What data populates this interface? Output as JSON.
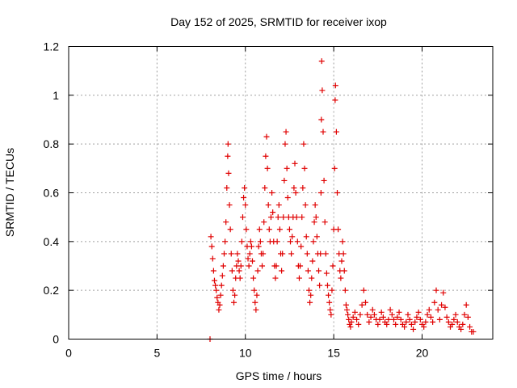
{
  "chart_data": {
    "type": "scatter",
    "title": "Day 152 of 2025, SRMTID for receiver ixop",
    "xlabel": "GPS time / hours",
    "ylabel": "SRMTID / TECUs",
    "xlim": [
      0,
      24
    ],
    "ylim": [
      0,
      1.2
    ],
    "xticks": [
      0,
      5,
      10,
      15,
      20
    ],
    "xtick_labels": [
      "0",
      "5",
      "10",
      "15",
      "20"
    ],
    "yticks": [
      0,
      0.2,
      0.4,
      0.6,
      0.8,
      1.0,
      1.2
    ],
    "ytick_labels": [
      "0",
      "0.2",
      "0.4",
      "0.6",
      "0.8",
      "1",
      "1.2"
    ],
    "grid": true,
    "marker": "+",
    "color": "#e00000",
    "series": [
      {
        "name": "SRMTID",
        "points": [
          [
            8.0,
            0.0
          ],
          [
            8.05,
            0.42
          ],
          [
            8.1,
            0.38
          ],
          [
            8.15,
            0.33
          ],
          [
            8.2,
            0.28
          ],
          [
            8.25,
            0.24
          ],
          [
            8.3,
            0.22
          ],
          [
            8.35,
            0.2
          ],
          [
            8.4,
            0.17
          ],
          [
            8.45,
            0.15
          ],
          [
            8.5,
            0.12
          ],
          [
            8.55,
            0.14
          ],
          [
            8.6,
            0.18
          ],
          [
            8.65,
            0.22
          ],
          [
            8.7,
            0.26
          ],
          [
            8.75,
            0.3
          ],
          [
            8.8,
            0.35
          ],
          [
            8.85,
            0.4
          ],
          [
            8.9,
            0.48
          ],
          [
            8.95,
            0.62
          ],
          [
            9.0,
            0.75
          ],
          [
            9.02,
            0.8
          ],
          [
            9.05,
            0.68
          ],
          [
            9.1,
            0.55
          ],
          [
            9.15,
            0.45
          ],
          [
            9.2,
            0.35
          ],
          [
            9.25,
            0.28
          ],
          [
            9.3,
            0.2
          ],
          [
            9.35,
            0.15
          ],
          [
            9.4,
            0.18
          ],
          [
            9.45,
            0.25
          ],
          [
            9.5,
            0.3
          ],
          [
            9.55,
            0.35
          ],
          [
            9.6,
            0.32
          ],
          [
            9.65,
            0.28
          ],
          [
            9.7,
            0.25
          ],
          [
            9.75,
            0.3
          ],
          [
            9.8,
            0.4
          ],
          [
            9.85,
            0.5
          ],
          [
            9.9,
            0.58
          ],
          [
            9.95,
            0.62
          ],
          [
            10.0,
            0.55
          ],
          [
            10.05,
            0.45
          ],
          [
            10.1,
            0.38
          ],
          [
            10.15,
            0.33
          ],
          [
            10.2,
            0.3
          ],
          [
            10.25,
            0.35
          ],
          [
            10.3,
            0.4
          ],
          [
            10.35,
            0.38
          ],
          [
            10.4,
            0.32
          ],
          [
            10.45,
            0.25
          ],
          [
            10.5,
            0.2
          ],
          [
            10.55,
            0.15
          ],
          [
            10.6,
            0.12
          ],
          [
            10.65,
            0.18
          ],
          [
            10.7,
            0.28
          ],
          [
            10.75,
            0.38
          ],
          [
            10.8,
            0.45
          ],
          [
            10.85,
            0.4
          ],
          [
            10.9,
            0.35
          ],
          [
            10.95,
            0.3
          ],
          [
            11.0,
            0.35
          ],
          [
            11.05,
            0.48
          ],
          [
            11.1,
            0.62
          ],
          [
            11.15,
            0.75
          ],
          [
            11.2,
            0.83
          ],
          [
            11.25,
            0.7
          ],
          [
            11.3,
            0.55
          ],
          [
            11.35,
            0.45
          ],
          [
            11.4,
            0.4
          ],
          [
            11.45,
            0.5
          ],
          [
            11.5,
            0.6
          ],
          [
            11.55,
            0.52
          ],
          [
            11.6,
            0.4
          ],
          [
            11.65,
            0.3
          ],
          [
            11.7,
            0.25
          ],
          [
            11.75,
            0.3
          ],
          [
            11.8,
            0.4
          ],
          [
            11.85,
            0.5
          ],
          [
            11.9,
            0.55
          ],
          [
            11.95,
            0.45
          ],
          [
            12.0,
            0.35
          ],
          [
            12.05,
            0.28
          ],
          [
            12.1,
            0.35
          ],
          [
            12.15,
            0.5
          ],
          [
            12.2,
            0.65
          ],
          [
            12.25,
            0.8
          ],
          [
            12.3,
            0.85
          ],
          [
            12.35,
            0.7
          ],
          [
            12.4,
            0.58
          ],
          [
            12.45,
            0.5
          ],
          [
            12.5,
            0.45
          ],
          [
            12.55,
            0.4
          ],
          [
            12.6,
            0.35
          ],
          [
            12.65,
            0.42
          ],
          [
            12.7,
            0.5
          ],
          [
            12.75,
            0.62
          ],
          [
            12.8,
            0.72
          ],
          [
            12.85,
            0.6
          ],
          [
            12.9,
            0.5
          ],
          [
            12.95,
            0.4
          ],
          [
            13.0,
            0.3
          ],
          [
            13.05,
            0.25
          ],
          [
            13.1,
            0.3
          ],
          [
            13.15,
            0.38
          ],
          [
            13.2,
            0.5
          ],
          [
            13.25,
            0.62
          ],
          [
            13.3,
            0.8
          ],
          [
            13.35,
            0.7
          ],
          [
            13.4,
            0.55
          ],
          [
            13.45,
            0.42
          ],
          [
            13.5,
            0.35
          ],
          [
            13.55,
            0.28
          ],
          [
            13.6,
            0.2
          ],
          [
            13.65,
            0.15
          ],
          [
            13.7,
            0.18
          ],
          [
            13.75,
            0.25
          ],
          [
            13.8,
            0.32
          ],
          [
            13.85,
            0.4
          ],
          [
            13.9,
            0.48
          ],
          [
            13.95,
            0.55
          ],
          [
            14.0,
            0.5
          ],
          [
            14.05,
            0.42
          ],
          [
            14.1,
            0.35
          ],
          [
            14.15,
            0.28
          ],
          [
            14.2,
            0.22
          ],
          [
            14.25,
            0.35
          ],
          [
            14.28,
            0.6
          ],
          [
            14.3,
            0.9
          ],
          [
            14.32,
            1.14
          ],
          [
            14.35,
            1.02
          ],
          [
            14.4,
            0.85
          ],
          [
            14.45,
            0.65
          ],
          [
            14.5,
            0.48
          ],
          [
            14.55,
            0.35
          ],
          [
            14.6,
            0.27
          ],
          [
            14.65,
            0.22
          ],
          [
            14.7,
            0.18
          ],
          [
            14.75,
            0.15
          ],
          [
            14.8,
            0.12
          ],
          [
            14.85,
            0.1
          ],
          [
            14.9,
            0.2
          ],
          [
            14.95,
            0.3
          ],
          [
            15.0,
            0.45
          ],
          [
            15.05,
            0.7
          ],
          [
            15.08,
            0.98
          ],
          [
            15.1,
            1.04
          ],
          [
            15.15,
            0.85
          ],
          [
            15.2,
            0.6
          ],
          [
            15.25,
            0.45
          ],
          [
            15.3,
            0.35
          ],
          [
            15.35,
            0.28
          ],
          [
            15.4,
            0.25
          ],
          [
            15.45,
            0.32
          ],
          [
            15.5,
            0.4
          ],
          [
            15.55,
            0.35
          ],
          [
            15.6,
            0.28
          ],
          [
            15.65,
            0.2
          ],
          [
            15.7,
            0.14
          ],
          [
            15.75,
            0.12
          ],
          [
            15.8,
            0.1
          ],
          [
            15.85,
            0.08
          ],
          [
            15.9,
            0.06
          ],
          [
            15.95,
            0.05
          ],
          [
            16.0,
            0.07
          ],
          [
            16.1,
            0.09
          ],
          [
            16.2,
            0.11
          ],
          [
            16.3,
            0.08
          ],
          [
            16.4,
            0.06
          ],
          [
            16.5,
            0.1
          ],
          [
            16.6,
            0.14
          ],
          [
            16.7,
            0.2
          ],
          [
            16.8,
            0.15
          ],
          [
            16.9,
            0.1
          ],
          [
            17.0,
            0.07
          ],
          [
            17.1,
            0.09
          ],
          [
            17.2,
            0.12
          ],
          [
            17.3,
            0.1
          ],
          [
            17.4,
            0.08
          ],
          [
            17.5,
            0.06
          ],
          [
            17.6,
            0.08
          ],
          [
            17.7,
            0.11
          ],
          [
            17.8,
            0.09
          ],
          [
            17.9,
            0.07
          ],
          [
            18.0,
            0.06
          ],
          [
            18.1,
            0.08
          ],
          [
            18.2,
            0.12
          ],
          [
            18.3,
            0.1
          ],
          [
            18.4,
            0.08
          ],
          [
            18.5,
            0.06
          ],
          [
            18.6,
            0.09
          ],
          [
            18.7,
            0.11
          ],
          [
            18.8,
            0.08
          ],
          [
            18.9,
            0.06
          ],
          [
            19.0,
            0.05
          ],
          [
            19.1,
            0.07
          ],
          [
            19.2,
            0.1
          ],
          [
            19.3,
            0.08
          ],
          [
            19.4,
            0.06
          ],
          [
            19.5,
            0.04
          ],
          [
            19.6,
            0.07
          ],
          [
            19.7,
            0.09
          ],
          [
            19.8,
            0.11
          ],
          [
            19.9,
            0.08
          ],
          [
            20.0,
            0.06
          ],
          [
            20.1,
            0.05
          ],
          [
            20.2,
            0.07
          ],
          [
            20.3,
            0.1
          ],
          [
            20.4,
            0.12
          ],
          [
            20.5,
            0.09
          ],
          [
            20.6,
            0.07
          ],
          [
            20.7,
            0.15
          ],
          [
            20.8,
            0.2
          ],
          [
            20.9,
            0.12
          ],
          [
            21.0,
            0.08
          ],
          [
            21.1,
            0.14
          ],
          [
            21.2,
            0.19
          ],
          [
            21.3,
            0.13
          ],
          [
            21.4,
            0.09
          ],
          [
            21.5,
            0.07
          ],
          [
            21.6,
            0.05
          ],
          [
            21.7,
            0.06
          ],
          [
            21.8,
            0.08
          ],
          [
            21.9,
            0.1
          ],
          [
            22.0,
            0.07
          ],
          [
            22.1,
            0.05
          ],
          [
            22.2,
            0.04
          ],
          [
            22.3,
            0.06
          ],
          [
            22.4,
            0.1
          ],
          [
            22.5,
            0.14
          ],
          [
            22.6,
            0.09
          ],
          [
            22.7,
            0.05
          ],
          [
            22.8,
            0.03
          ],
          [
            22.9,
            0.03
          ]
        ]
      }
    ]
  }
}
